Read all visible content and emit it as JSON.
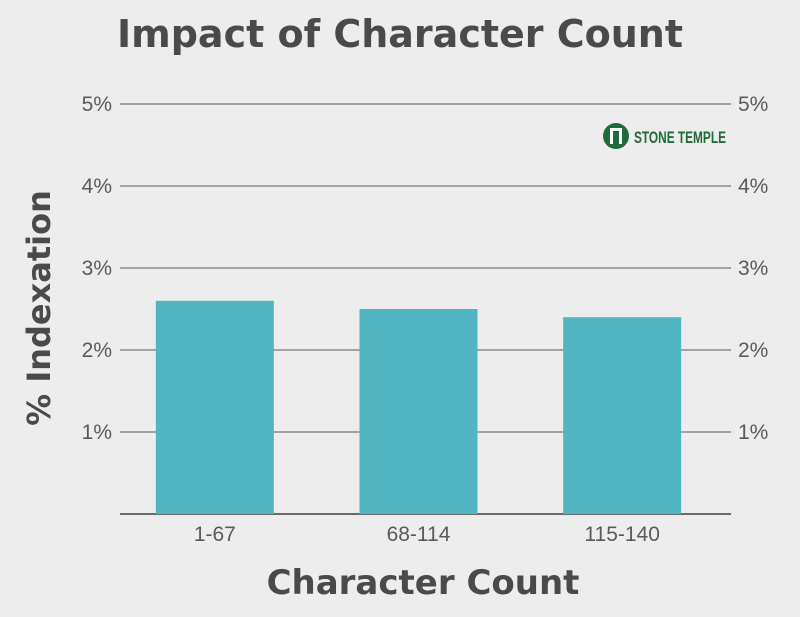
{
  "chart_data": {
    "type": "bar",
    "title": "Impact of Character Count",
    "xlabel": "Character Count",
    "ylabel": "% Indexation",
    "categories": [
      "1-67",
      "68-114",
      "115-140"
    ],
    "values": [
      2.6,
      2.5,
      2.4
    ],
    "ylim": [
      0,
      5
    ],
    "yticks": [
      "1%",
      "2%",
      "3%",
      "4%",
      "5%"
    ],
    "grid": true,
    "bar_color": "#51b5c2",
    "grid_color": "#8a8a8c"
  },
  "logo": {
    "text": "STONE TEMPLE",
    "icon": "stone-temple-logo-icon",
    "color": "#1f6b3b"
  }
}
